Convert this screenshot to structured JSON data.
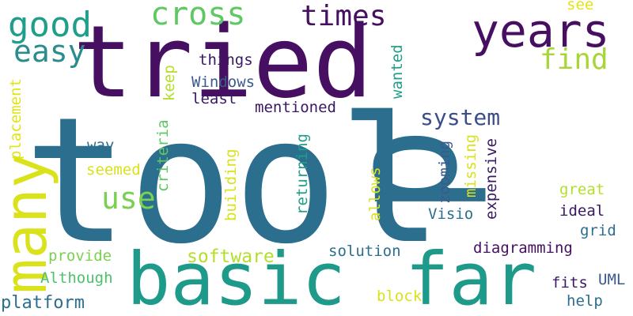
{
  "cloud": {
    "background": "#ffffff",
    "words": [
      {
        "text": "tool",
        "color": "#2c6e8e"
      },
      {
        "text": "tried",
        "color": "#460f62"
      },
      {
        "text": "p",
        "color": "#2c6e8e"
      },
      {
        "text": "basic",
        "color": "#1e9a8a"
      },
      {
        "text": "far",
        "color": "#1e9a8a"
      },
      {
        "text": "many",
        "color": "#d9e21a"
      },
      {
        "text": "years",
        "color": "#460f62"
      },
      {
        "text": "good",
        "color": "#1f9e89"
      },
      {
        "text": "cross",
        "color": "#5ec962"
      },
      {
        "text": "times",
        "color": "#460f62"
      },
      {
        "text": "easy",
        "color": "#2a8c8c"
      },
      {
        "text": "find",
        "color": "#a8d63a"
      },
      {
        "text": "use",
        "color": "#7ad151"
      },
      {
        "text": "system",
        "color": "#3b4e8a"
      },
      {
        "text": "software",
        "color": "#b5de2b"
      },
      {
        "text": "platform",
        "color": "#2c6e8e"
      },
      {
        "text": "things",
        "color": "#3a1863"
      },
      {
        "text": "Windows",
        "color": "#3b5a8c"
      },
      {
        "text": "least",
        "color": "#3a1863"
      },
      {
        "text": "mentioned",
        "color": "#3a1863"
      },
      {
        "text": "keep",
        "color": "#b5de2b"
      },
      {
        "text": "placement",
        "color": "#e2e418"
      },
      {
        "text": "wanted",
        "color": "#1f9e89"
      },
      {
        "text": "see",
        "color": "#e2e418"
      },
      {
        "text": "way",
        "color": "#2c6e8e"
      },
      {
        "text": "seemed",
        "color": "#d9e21a"
      },
      {
        "text": "criteria",
        "color": "#5ec962"
      },
      {
        "text": "building",
        "color": "#d9e21a"
      },
      {
        "text": "returning",
        "color": "#1f9e89"
      },
      {
        "text": "allows",
        "color": "#d9e21a"
      },
      {
        "text": "zooming",
        "color": "#3b5a8c"
      },
      {
        "text": "missing",
        "color": "#d9e21a"
      },
      {
        "text": "expensive",
        "color": "#3a1863"
      },
      {
        "text": "Visio",
        "color": "#2c6e8e"
      },
      {
        "text": "great",
        "color": "#b5de2b"
      },
      {
        "text": "ideal",
        "color": "#3a1863"
      },
      {
        "text": "grid",
        "color": "#2c6e8e"
      },
      {
        "text": "diagramming",
        "color": "#460f62"
      },
      {
        "text": "solution",
        "color": "#2c6e8e"
      },
      {
        "text": "provide",
        "color": "#7ad151"
      },
      {
        "text": "Although",
        "color": "#4cc26c"
      },
      {
        "text": "UML",
        "color": "#3b5a8c"
      },
      {
        "text": "fits",
        "color": "#3a1863"
      },
      {
        "text": "block",
        "color": "#d9e21a"
      },
      {
        "text": "help",
        "color": "#2c6e8e"
      }
    ]
  }
}
